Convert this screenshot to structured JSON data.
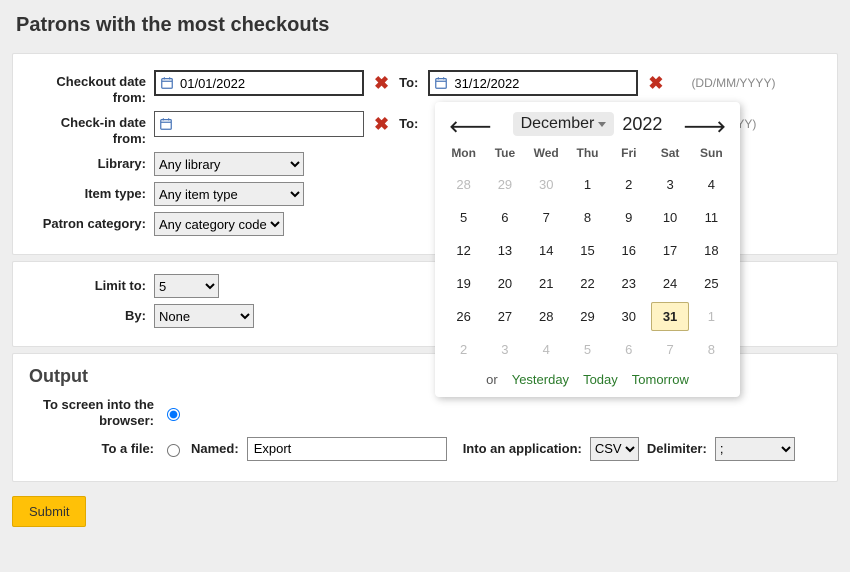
{
  "page": {
    "title": "Patrons with the most checkouts"
  },
  "form": {
    "checkout_from_label": "Checkout date from:",
    "checkout_from_value": "01/01/2022",
    "to_label": "To:",
    "checkout_to_value": "31/12/2022",
    "date_hint": "(DD/MM/YYYY)",
    "checkin_from_label": "Check-in date from:",
    "checkin_from_value": "",
    "checkin_to_hint": "YYY)",
    "library_label": "Library:",
    "library_value": "Any library",
    "itemtype_label": "Item type:",
    "itemtype_value": "Any item type",
    "patroncat_label": "Patron category:",
    "patroncat_value": "Any category code"
  },
  "limits": {
    "limit_label": "Limit to:",
    "limit_value": "5",
    "by_label": "By:",
    "by_value": "None"
  },
  "output": {
    "heading": "Output",
    "screen_label": "To screen into the browser:",
    "file_label": "To a file:",
    "named_label": "Named:",
    "named_value": "Export",
    "app_label": "Into an application:",
    "app_value": "CSV",
    "delimiter_label": "Delimiter:",
    "delimiter_value": ";"
  },
  "submit_label": "Submit",
  "datepicker": {
    "month": "December",
    "year": "2022",
    "dows": [
      "Mon",
      "Tue",
      "Wed",
      "Thu",
      "Fri",
      "Sat",
      "Sun"
    ],
    "leading_out": [
      28,
      29,
      30
    ],
    "days": [
      1,
      2,
      3,
      4,
      5,
      6,
      7,
      8,
      9,
      10,
      11,
      12,
      13,
      14,
      15,
      16,
      17,
      18,
      19,
      20,
      21,
      22,
      23,
      24,
      25,
      26,
      27,
      28,
      29,
      30,
      31
    ],
    "trailing_out": [
      1,
      2,
      3,
      4,
      5,
      6,
      7,
      8
    ],
    "selected": 31,
    "or_label": "or",
    "yesterday": "Yesterday",
    "today": "Today",
    "tomorrow": "Tomorrow",
    "colors": {
      "selected_bg": "#fff3c4",
      "selected_border": "#c0b070",
      "link": "#2a7a2a",
      "out": "#bbbbbb"
    }
  }
}
